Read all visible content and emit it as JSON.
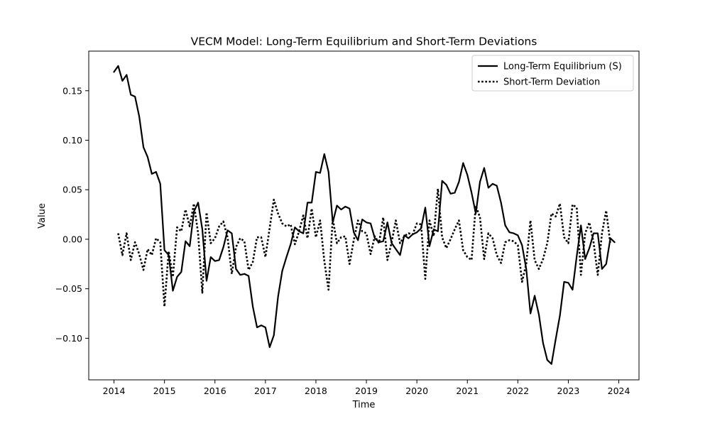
{
  "chart_data": {
    "type": "line",
    "title": "VECM Model: Long-Term Equilibrium and Short-Term Deviations",
    "xlabel": "Time",
    "ylabel": "Value",
    "xlim": [
      2013.5,
      2024.4
    ],
    "ylim": [
      -0.142,
      0.19
    ],
    "x_ticks": [
      2014,
      2015,
      2016,
      2017,
      2018,
      2019,
      2020,
      2021,
      2022,
      2023,
      2024
    ],
    "x_tick_labels": [
      "2014",
      "2015",
      "2016",
      "2017",
      "2018",
      "2019",
      "2020",
      "2021",
      "2022",
      "2023",
      "2024"
    ],
    "y_ticks": [
      -0.1,
      -0.05,
      0.0,
      0.05,
      0.1,
      0.15
    ],
    "y_tick_labels": [
      "−0.10",
      "−0.05",
      "0.00",
      "0.05",
      "0.10",
      "0.15"
    ],
    "grid": false,
    "legend_position": "top-right",
    "colors": {
      "line": "#000000",
      "axes": "#000000",
      "background": "#ffffff"
    },
    "series": [
      {
        "name": "Long-Term Equilibrium (S)",
        "style": "solid",
        "x_start": 2014.0,
        "x_step_months": 1,
        "values": [
          0.169,
          0.175,
          0.16,
          0.166,
          0.146,
          0.144,
          0.124,
          0.093,
          0.083,
          0.066,
          0.068,
          0.056,
          -0.011,
          -0.016,
          -0.052,
          -0.038,
          -0.033,
          -0.002,
          -0.007,
          0.028,
          0.037,
          0.01,
          -0.042,
          -0.018,
          -0.022,
          -0.021,
          -0.008,
          0.009,
          0.006,
          -0.03,
          -0.036,
          -0.035,
          -0.037,
          -0.068,
          -0.089,
          -0.087,
          -0.089,
          -0.109,
          -0.097,
          -0.058,
          -0.032,
          -0.018,
          -0.005,
          0.012,
          0.008,
          0.006,
          0.037,
          0.037,
          0.068,
          0.067,
          0.086,
          0.068,
          0.017,
          0.034,
          0.03,
          0.033,
          0.031,
          0.007,
          -0.001,
          0.02,
          0.017,
          0.016,
          0.001,
          -0.003,
          -0.002,
          0.017,
          -0.004,
          -0.01,
          -0.016,
          0.004,
          0.001,
          0.005,
          0.007,
          0.011,
          0.032,
          -0.007,
          0.01,
          0.008,
          0.059,
          0.055,
          0.046,
          0.047,
          0.058,
          0.077,
          0.065,
          0.047,
          0.026,
          0.058,
          0.072,
          0.052,
          0.056,
          0.054,
          0.037,
          0.014,
          0.007,
          0.006,
          0.004,
          -0.006,
          -0.03,
          -0.075,
          -0.057,
          -0.076,
          -0.105,
          -0.122,
          -0.126,
          -0.101,
          -0.077,
          -0.043,
          -0.044,
          -0.051,
          -0.017,
          0.014,
          -0.02,
          -0.009,
          0.006,
          0.006,
          -0.03,
          -0.025,
          0.001,
          -0.003
        ]
      },
      {
        "name": "Short-Term Deviation",
        "style": "dotted",
        "x_start": 2014.083,
        "x_step_months": 1,
        "values": [
          0.006,
          -0.016,
          0.006,
          -0.021,
          -0.003,
          -0.015,
          -0.031,
          -0.01,
          -0.016,
          0.001,
          -0.003,
          -0.068,
          -0.012,
          -0.038,
          0.012,
          0.008,
          0.03,
          0.013,
          0.036,
          0.006,
          -0.054,
          0.027,
          -0.004,
          0.001,
          0.013,
          0.018,
          0.002,
          -0.035,
          -0.008,
          0.001,
          -0.002,
          -0.031,
          -0.023,
          0.002,
          0.002,
          -0.018,
          0.011,
          0.04,
          0.026,
          0.016,
          0.013,
          0.015,
          -0.005,
          0.008,
          0.024,
          0.001,
          0.031,
          0.002,
          0.019,
          -0.022,
          -0.051,
          0.021,
          -0.004,
          0.002,
          0.003,
          -0.025,
          -0.001,
          0.019,
          0.008,
          0.006,
          -0.015,
          0.003,
          -0.004,
          0.022,
          -0.021,
          -0.003,
          0.019,
          -0.004,
          0.003,
          0.006,
          0.005,
          0.016,
          0.015,
          -0.04,
          0.019,
          0.003,
          0.051,
          0.002,
          -0.009,
          0.0,
          0.01,
          0.019,
          -0.011,
          -0.018,
          -0.021,
          0.034,
          0.022,
          -0.02,
          0.006,
          0.001,
          -0.016,
          -0.024,
          -0.003,
          -0.001,
          -0.002,
          -0.006,
          -0.043,
          -0.025,
          0.019,
          -0.021,
          -0.03,
          -0.02,
          -0.004,
          0.026,
          0.023,
          0.036,
          0.002,
          -0.004,
          0.035,
          0.032,
          -0.036,
          0.006,
          0.017,
          -0.003,
          -0.036,
          0.006,
          0.029,
          -0.005
        ]
      }
    ]
  }
}
